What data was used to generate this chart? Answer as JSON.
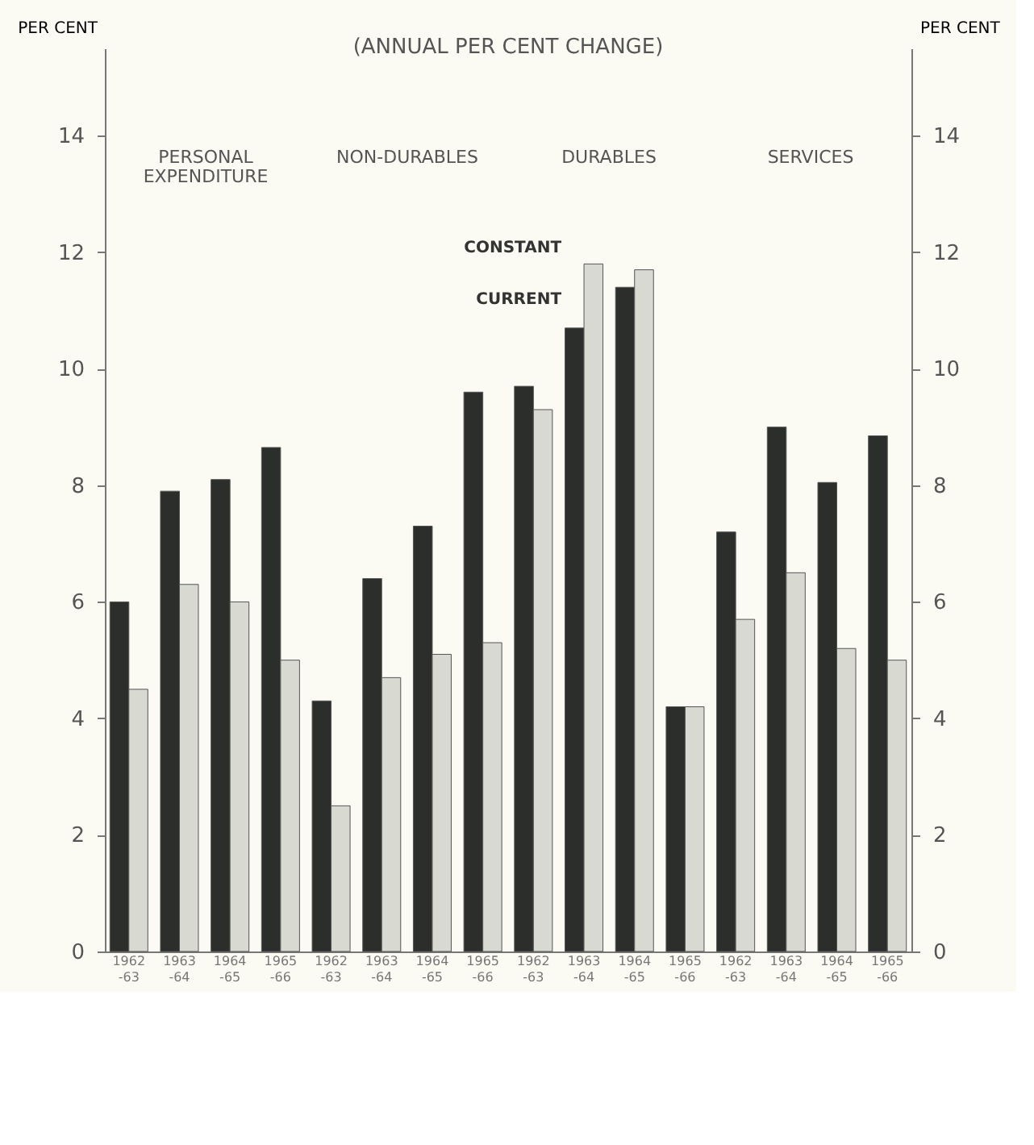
{
  "chart_data": {
    "type": "bar",
    "title": "(ANNUAL PER CENT CHANGE)",
    "ylabel": "PER CENT",
    "y2label": "PER CENT",
    "categories": [
      "1962-63",
      "1963-64",
      "1964-65",
      "1965-66",
      "1962-63",
      "1963-64",
      "1964-65",
      "1965-66",
      "1962-63",
      "1963-64",
      "1964-65",
      "1965-66",
      "1962-63",
      "1963-64",
      "1964-65",
      "1965-66"
    ],
    "series": [
      {
        "name": "CURRENT",
        "color": "#2b2e2b",
        "values": [
          6.0,
          7.9,
          8.1,
          8.65,
          4.3,
          6.4,
          7.3,
          9.6,
          9.7,
          10.7,
          11.4,
          4.2,
          7.2,
          9.0,
          8.05,
          8.85
        ]
      },
      {
        "name": "CONSTANT",
        "color": "#d8dad2",
        "values": [
          4.5,
          6.3,
          6.0,
          5.0,
          2.5,
          4.7,
          5.1,
          5.3,
          9.3,
          11.8,
          11.7,
          4.2,
          5.7,
          6.5,
          5.2,
          5.0
        ]
      }
    ],
    "annotations": [
      "PERSONAL EXPENDITURE",
      "NON-DURABLES",
      "DURABLES",
      "SERVICES"
    ],
    "ylim": [
      0,
      15.5
    ],
    "yticks": [
      0,
      2,
      4,
      6,
      8,
      10,
      12,
      14
    ],
    "y2lim": [
      0,
      15.5
    ],
    "y2ticks": [
      0,
      2,
      4,
      6,
      8,
      10,
      12,
      14
    ],
    "grid": false,
    "legend": false
  }
}
